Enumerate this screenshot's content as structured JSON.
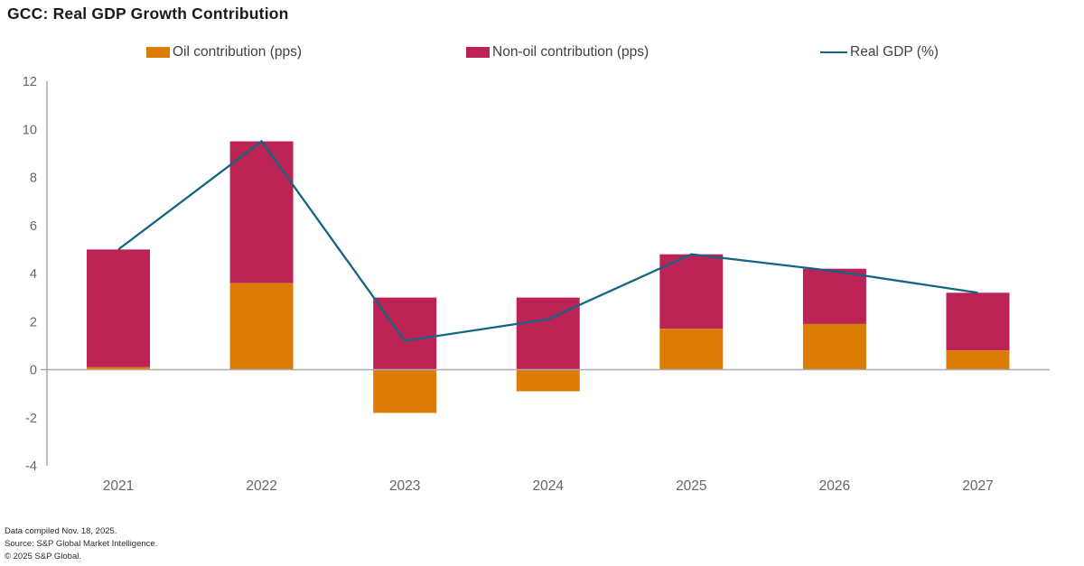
{
  "title": "GCC: Real GDP Growth Contribution",
  "colors": {
    "oil": "#db7c05",
    "non_oil": "#bc2355",
    "gdp_line": "#146482",
    "axis_line": "#9b9b9b",
    "zero_line": "#adadad",
    "tick_text": "#63666a",
    "legend_text": "#3e4146",
    "title_text": "#1a1a1a"
  },
  "chart_data": {
    "type": "bar",
    "subtype": "stacked-bars-with-line-overlay",
    "title": "GCC: Real GDP Growth Contribution",
    "categories": [
      "2021",
      "2022",
      "2023",
      "2024",
      "2025",
      "2026",
      "2027"
    ],
    "series": [
      {
        "name": "Oil contribution (pps)",
        "kind": "bar",
        "color": "#db7c05",
        "values": [
          0.1,
          3.6,
          -1.8,
          -0.9,
          1.7,
          1.9,
          0.8
        ]
      },
      {
        "name": "Non-oil contribution (pps)",
        "kind": "bar",
        "color": "#bc2355",
        "values": [
          4.9,
          5.9,
          3.0,
          3.0,
          3.1,
          2.3,
          2.4
        ]
      },
      {
        "name": "Real GDP (%)",
        "kind": "line",
        "color": "#146482",
        "values": [
          5.0,
          9.5,
          1.2,
          2.1,
          4.8,
          4.1,
          3.2
        ]
      }
    ],
    "xlabel": "",
    "ylabel": "",
    "ylim": [
      -4,
      12
    ],
    "yticks": [
      12,
      10,
      8,
      6,
      4,
      2,
      0,
      -2,
      -4
    ],
    "grid": false,
    "legend_position": "top"
  },
  "footer": {
    "line1": "Data compiled Nov. 18, 2025.",
    "line2": "Source: S&P Global Market Intelligence.",
    "line3": "© 2025 S&P Global."
  }
}
